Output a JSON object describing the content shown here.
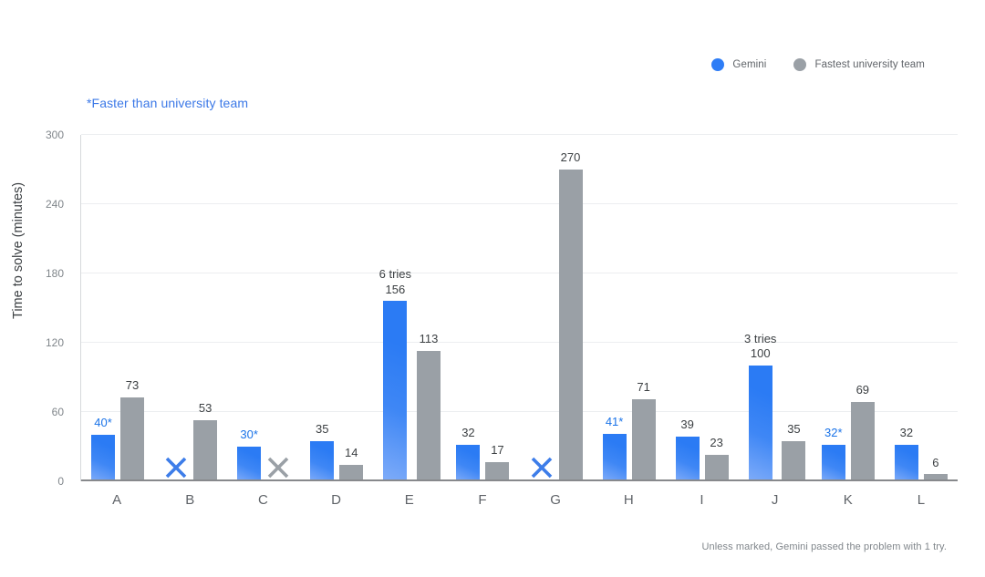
{
  "legend": {
    "items": [
      {
        "label": "Gemini",
        "color": "#2e7df6"
      },
      {
        "label": "Fastest university team",
        "color": "#9aa0a6"
      }
    ]
  },
  "note": "*Faster than university team",
  "footnote": "Unless marked, Gemini passed the problem with 1 try.",
  "colors": {
    "gemini_bar_top": "#2b7bf4",
    "gemini_bar_bottom_left": "#7facf9",
    "university_bar": "#9aa0a6",
    "starred_label_blue": "#1a73e8",
    "value_label_gray": "#3c4043",
    "note_blue": "#3b78e7",
    "fail_marker_blue": "#3d7de9",
    "fail_marker_gray": "#9aa0a6"
  },
  "chart_data": {
    "type": "bar",
    "title": "",
    "xlabel": "",
    "ylabel": "Time to solve (minutes)",
    "ylim": [
      0,
      300
    ],
    "yticks": [
      0,
      60,
      120,
      180,
      240,
      300
    ],
    "grid": true,
    "legend_position": "top-right",
    "categories": [
      "A",
      "B",
      "C",
      "D",
      "E",
      "F",
      "G",
      "H",
      "I",
      "J",
      "K",
      "L"
    ],
    "failed_marker": "X cross shown where team did not solve",
    "series": [
      {
        "name": "Gemini",
        "values": [
          40,
          null,
          30,
          35,
          156,
          32,
          null,
          41,
          39,
          100,
          32,
          32
        ],
        "labels": [
          "40*",
          null,
          "30*",
          "35",
          "156",
          "32",
          null,
          "41*",
          "39",
          "100",
          "32*",
          "32"
        ],
        "starred": [
          true,
          false,
          true,
          false,
          false,
          false,
          false,
          true,
          false,
          false,
          true,
          false
        ],
        "tries": [
          null,
          null,
          null,
          null,
          "6 tries",
          null,
          null,
          null,
          null,
          "3 tries",
          null,
          null
        ],
        "marker_color": "#3d7de9"
      },
      {
        "name": "Fastest university team",
        "values": [
          73,
          53,
          null,
          14,
          113,
          17,
          270,
          71,
          23,
          35,
          69,
          6
        ],
        "labels": [
          "73",
          "53",
          null,
          "14",
          "113",
          "17",
          "270",
          "71",
          "23",
          "35",
          "69",
          "6"
        ],
        "starred": [
          false,
          false,
          false,
          false,
          false,
          false,
          false,
          false,
          false,
          false,
          false,
          false
        ],
        "tries": [
          null,
          null,
          null,
          null,
          null,
          null,
          null,
          null,
          null,
          null,
          null,
          null
        ],
        "marker_color": "#9aa0a6"
      }
    ]
  }
}
